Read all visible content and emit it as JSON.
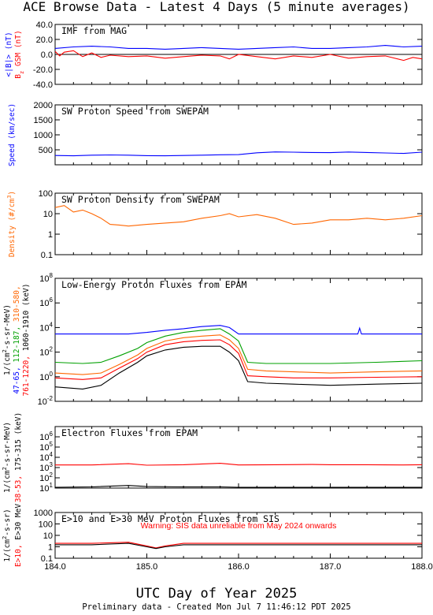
{
  "page": {
    "title": "ACE Browse Data - Latest 4 Days (5 minute averages)",
    "xlabel": "UTC Day of Year 2025",
    "footer": "Preliminary data - Created Mon Jul  7 11:46:12 PDT 2025"
  },
  "chart_data": [
    {
      "type": "line",
      "title": "IMF from MAG",
      "ylabel_parts": [
        {
          "text": "<|B|> (nT)",
          "color": "#0000ff"
        },
        {
          "text": "B_z GSM (nT)",
          "color": "#ff0000"
        }
      ],
      "y_scale": "linear",
      "ylim": [
        -40,
        40
      ],
      "yticks": [
        -40,
        -20,
        0,
        20,
        40
      ],
      "ytick_labels": [
        "-40.0",
        "-20.0",
        "0.0",
        "20.0",
        "40.0"
      ],
      "zero_line": true,
      "series": [
        {
          "name": "<|B|>",
          "color": "#0000ff",
          "x": [
            184.0,
            184.2,
            184.4,
            184.6,
            184.8,
            185.0,
            185.2,
            185.4,
            185.6,
            185.8,
            186.0,
            186.2,
            186.4,
            186.6,
            186.8,
            187.0,
            187.2,
            187.4,
            187.6,
            187.8,
            188.0
          ],
          "y": [
            8,
            10,
            11,
            10,
            8,
            8,
            7,
            8,
            9,
            8,
            7,
            8,
            9,
            10,
            8,
            8,
            9,
            10,
            12,
            10,
            11
          ]
        },
        {
          "name": "B_z GSM",
          "color": "#ff0000",
          "x": [
            184.0,
            184.05,
            184.1,
            184.2,
            184.3,
            184.4,
            184.5,
            184.6,
            184.8,
            185.0,
            185.2,
            185.4,
            185.6,
            185.8,
            185.9,
            186.0,
            186.2,
            186.4,
            186.6,
            186.8,
            187.0,
            187.2,
            187.4,
            187.6,
            187.8,
            187.9,
            188.0
          ],
          "y": [
            4,
            -2,
            3,
            5,
            -3,
            2,
            -4,
            -1,
            -3,
            -2,
            -5,
            -3,
            -1,
            -2,
            -6,
            0,
            -3,
            -6,
            -2,
            -4,
            0,
            -5,
            -3,
            -2,
            -8,
            -4,
            -6
          ]
        }
      ]
    },
    {
      "type": "line",
      "title": "SW Proton Speed from SWEPAM",
      "ylabel_parts": [
        {
          "text": "Speed (km/sec)",
          "color": "#0000ff"
        }
      ],
      "y_scale": "linear",
      "ylim": [
        0,
        2000
      ],
      "yticks": [
        500,
        1000,
        1500,
        2000
      ],
      "ytick_labels": [
        "500",
        "1000",
        "1500",
        "2000"
      ],
      "series": [
        {
          "name": "Speed",
          "color": "#0000ff",
          "x": [
            184.0,
            184.2,
            184.4,
            184.6,
            184.8,
            185.0,
            185.2,
            185.4,
            185.6,
            185.8,
            186.0,
            186.2,
            186.4,
            186.6,
            186.8,
            187.0,
            187.2,
            187.4,
            187.6,
            187.8,
            188.0
          ],
          "y": [
            310,
            300,
            320,
            330,
            320,
            305,
            300,
            310,
            320,
            335,
            340,
            400,
            430,
            420,
            410,
            405,
            425,
            410,
            395,
            380,
            420
          ]
        }
      ]
    },
    {
      "type": "line",
      "title": "SW Proton Density from SWEPAM",
      "ylabel_parts": [
        {
          "text": "Density (#/cm^3)",
          "color": "#ff6600"
        }
      ],
      "y_scale": "log",
      "ylim": [
        0.1,
        100
      ],
      "yticks": [
        0.1,
        1,
        10,
        100
      ],
      "ytick_labels": [
        "0.1",
        "1",
        "10",
        "100"
      ],
      "series": [
        {
          "name": "Density",
          "color": "#ff6600",
          "x": [
            184.0,
            184.1,
            184.2,
            184.3,
            184.4,
            184.5,
            184.6,
            184.7,
            184.8,
            185.0,
            185.2,
            185.4,
            185.6,
            185.8,
            185.9,
            186.0,
            186.2,
            186.4,
            186.6,
            186.8,
            187.0,
            187.2,
            187.4,
            187.6,
            187.8,
            188.0
          ],
          "y": [
            20,
            25,
            12,
            15,
            10,
            6,
            3,
            2.8,
            2.5,
            3,
            3.5,
            4,
            6,
            8,
            10,
            7,
            9,
            6,
            3,
            3.5,
            5,
            5,
            6,
            5,
            6,
            8
          ]
        }
      ]
    },
    {
      "type": "line",
      "title": "Low-Energy Proton Fluxes from EPAM",
      "ylabel_parts": [
        {
          "text": "47-65,",
          "color": "#0000ff"
        },
        {
          "text": "112-187,",
          "color": "#00a000"
        },
        {
          "text": "310-580,",
          "color": "#ff6600"
        },
        {
          "text": "761-1220,",
          "color": "#ff0000"
        },
        {
          "text": "1060-1910 (keV)",
          "color": "#000000"
        },
        {
          "text": "1/(cm^2-s-sr-MeV)",
          "color": "#000000"
        }
      ],
      "y_scale": "log",
      "ylim": [
        0.01,
        100000000
      ],
      "yticks": [
        0.01,
        1,
        100,
        10000,
        1000000,
        100000000
      ],
      "ytick_labels": [
        "10^-2",
        "10^0",
        "10^2",
        "10^4",
        "10^6",
        "10^8"
      ],
      "series": [
        {
          "name": "47-65",
          "color": "#0000ff",
          "x": [
            184.0,
            184.5,
            184.8,
            185.0,
            185.2,
            185.4,
            185.6,
            185.8,
            185.9,
            186.0,
            186.5,
            187.0,
            187.3,
            187.32,
            187.34,
            188.0
          ],
          "y": [
            3000,
            3000,
            3000,
            4000,
            6000,
            8000,
            12000,
            15000,
            10000,
            3000,
            3000,
            3000,
            3000,
            9000,
            3000,
            3000
          ]
        },
        {
          "name": "112-187",
          "color": "#00a000",
          "x": [
            184.0,
            184.3,
            184.5,
            184.7,
            184.9,
            185.0,
            185.2,
            185.4,
            185.6,
            185.8,
            185.9,
            186.0,
            186.1,
            186.3,
            186.6,
            187.0,
            187.5,
            188.0
          ],
          "y": [
            15,
            12,
            15,
            50,
            200,
            600,
            2000,
            4000,
            6000,
            8000,
            3000,
            800,
            15,
            12,
            12,
            12,
            15,
            20
          ]
        },
        {
          "name": "310-580",
          "color": "#ff6600",
          "x": [
            184.0,
            184.3,
            184.5,
            184.7,
            184.9,
            185.0,
            185.2,
            185.4,
            185.6,
            185.8,
            185.9,
            186.0,
            186.1,
            186.3,
            186.6,
            187.0,
            187.5,
            188.0
          ],
          "y": [
            2,
            1.5,
            2,
            10,
            60,
            200,
            800,
            1500,
            2000,
            2500,
            1000,
            200,
            4,
            3,
            2.5,
            2,
            2.5,
            3
          ]
        },
        {
          "name": "761-1220",
          "color": "#ff0000",
          "x": [
            184.0,
            184.3,
            184.5,
            184.7,
            184.9,
            185.0,
            185.2,
            185.4,
            185.6,
            185.8,
            185.9,
            186.0,
            186.1,
            186.3,
            186.6,
            187.0,
            187.5,
            188.0
          ],
          "y": [
            0.8,
            0.6,
            0.8,
            5,
            30,
            100,
            400,
            700,
            900,
            1000,
            400,
            80,
            1.2,
            1,
            0.8,
            0.8,
            0.9,
            1
          ]
        },
        {
          "name": "1060-1910",
          "color": "#000000",
          "x": [
            184.0,
            184.3,
            184.5,
            184.7,
            184.9,
            185.0,
            185.2,
            185.4,
            185.6,
            185.8,
            185.9,
            186.0,
            186.1,
            186.3,
            186.6,
            187.0,
            187.5,
            188.0
          ],
          "y": [
            0.15,
            0.1,
            0.2,
            2,
            15,
            50,
            150,
            250,
            300,
            300,
            100,
            20,
            0.4,
            0.3,
            0.25,
            0.2,
            0.25,
            0.3
          ]
        }
      ]
    },
    {
      "type": "line",
      "title": "Electron Fluxes from EPAM",
      "ylabel_parts": [
        {
          "text": "38-53,",
          "color": "#ff0000"
        },
        {
          "text": "175-315 (keV)",
          "color": "#000000"
        },
        {
          "text": "1/(cm^2-s-sr-MeV)",
          "color": "#000000"
        }
      ],
      "y_scale": "log",
      "ylim": [
        10,
        10000000
      ],
      "yticks": [
        10,
        100,
        1000,
        10000,
        100000,
        1000000
      ],
      "ytick_labels": [
        "10^1",
        "10^2",
        "10^3",
        "10^4",
        "10^5",
        "10^6"
      ],
      "series": [
        {
          "name": "38-53",
          "color": "#ff0000",
          "x": [
            184.0,
            184.4,
            184.8,
            185.0,
            185.4,
            185.8,
            186.0,
            186.4,
            186.8,
            187.0,
            187.4,
            187.8,
            188.0
          ],
          "y": [
            1800,
            1800,
            2400,
            1700,
            1900,
            2600,
            1800,
            1900,
            2000,
            1900,
            1900,
            1800,
            1900
          ]
        },
        {
          "name": "175-315",
          "color": "#000000",
          "x": [
            184.0,
            184.4,
            184.8,
            185.0,
            185.4,
            185.8,
            186.0,
            186.4,
            186.8,
            187.0,
            187.4,
            187.8,
            188.0
          ],
          "y": [
            12,
            13,
            18,
            14,
            13,
            13,
            12,
            12,
            12,
            12,
            12,
            12,
            12
          ]
        }
      ]
    },
    {
      "type": "line",
      "title": "E>10 and E>30 MeV Proton Fluxes from SIS",
      "annotation": "Warning: SIS data unreliable from May 2024 onwards",
      "ylabel_parts": [
        {
          "text": "E>10,",
          "color": "#ff0000"
        },
        {
          "text": "E>30 MeV",
          "color": "#000000"
        },
        {
          "text": "1/(cm^2-s-sr)",
          "color": "#000000"
        }
      ],
      "y_scale": "log",
      "ylim": [
        0.1,
        1000
      ],
      "yticks": [
        0.1,
        1,
        10,
        100,
        1000
      ],
      "ytick_labels": [
        "0.1",
        "1",
        "10",
        "100",
        "1000"
      ],
      "xlim": [
        184,
        188
      ],
      "xticks": [
        184,
        185,
        186,
        187,
        188
      ],
      "xtick_labels": [
        "184.0",
        "185.0",
        "186.0",
        "187.0",
        "188.0"
      ],
      "series": [
        {
          "name": "E>10",
          "color": "#ff0000",
          "x": [
            184.0,
            184.4,
            184.8,
            185.0,
            185.1,
            185.2,
            185.4,
            185.6,
            186.0,
            186.5,
            187.0,
            187.5,
            188.0
          ],
          "y": [
            2,
            2,
            2.5,
            1.2,
            0.8,
            1.2,
            2,
            2,
            2,
            2,
            2,
            2,
            2
          ]
        },
        {
          "name": "E>30 MeV",
          "color": "#000000",
          "x": [
            184.0,
            184.4,
            184.8,
            185.0,
            185.1,
            185.2,
            185.4,
            185.6,
            186.0,
            186.5,
            187.0,
            187.5,
            188.0
          ],
          "y": [
            1.5,
            1.5,
            2,
            1,
            0.7,
            1,
            1.5,
            1.5,
            1.5,
            1.5,
            1.5,
            1.5,
            1.5
          ]
        }
      ]
    }
  ]
}
